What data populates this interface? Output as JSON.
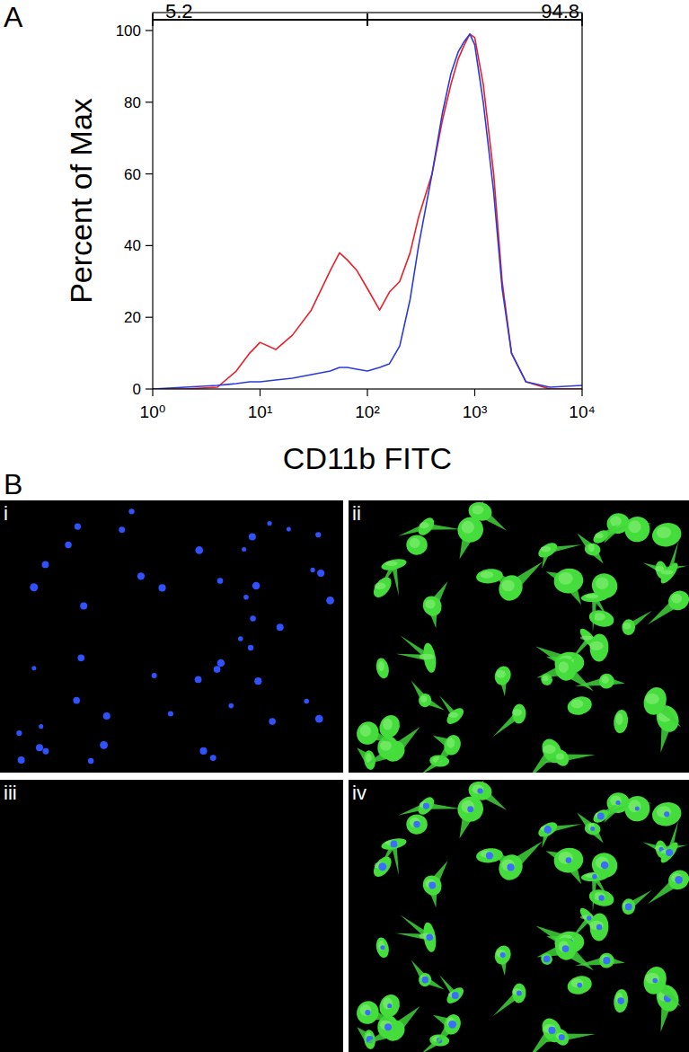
{
  "chart_data": {
    "type": "line",
    "x_label": "CD11b FITC",
    "y_label": "Percent of Max",
    "log": "x",
    "xlim": [
      1,
      10000
    ],
    "ylim": [
      0,
      105
    ],
    "xticks": [
      {
        "value": 1,
        "label": "10⁰"
      },
      {
        "value": 10,
        "label": "10¹"
      },
      {
        "value": 100,
        "label": "10²"
      },
      {
        "value": 1000,
        "label": "10³"
      },
      {
        "value": 10000,
        "label": "10⁴"
      }
    ],
    "yticks": [
      0,
      20,
      40,
      60,
      80,
      100
    ],
    "gates": [
      {
        "from": 1,
        "to": 100,
        "value": 5.2
      },
      {
        "from": 100,
        "to": 10000,
        "value": 94.8
      }
    ],
    "x": [
      1,
      2,
      4,
      6,
      8,
      10,
      14,
      20,
      30,
      45,
      55,
      65,
      80,
      100,
      130,
      160,
      200,
      250,
      300,
      400,
      500,
      600,
      700,
      800,
      900,
      1000,
      1200,
      1500,
      1800,
      2200,
      3000,
      5000,
      10000
    ],
    "series": [
      {
        "color": "#e8202a",
        "values": [
          0,
          0,
          0.5,
          5,
          10,
          13,
          11,
          15,
          22,
          33,
          38,
          36,
          33,
          28,
          22,
          27,
          30,
          38,
          48,
          60,
          75,
          85,
          92,
          96,
          99,
          98,
          85,
          60,
          30,
          10,
          2,
          0,
          0
        ]
      },
      {
        "color": "#2b3bd6",
        "values": [
          0,
          0.5,
          1,
          1.5,
          2,
          2,
          2.5,
          3,
          4,
          5,
          6,
          6,
          5.5,
          5,
          6,
          7,
          12,
          25,
          40,
          60,
          77,
          88,
          94,
          97,
          99,
          96,
          80,
          55,
          28,
          10,
          2,
          0.5,
          1
        ]
      }
    ]
  },
  "figure": {
    "panel_labels": [
      "A",
      "B"
    ],
    "images": [
      {
        "label": "i"
      },
      {
        "label": "ii"
      },
      {
        "label": "iii"
      },
      {
        "label": "iv"
      }
    ]
  }
}
